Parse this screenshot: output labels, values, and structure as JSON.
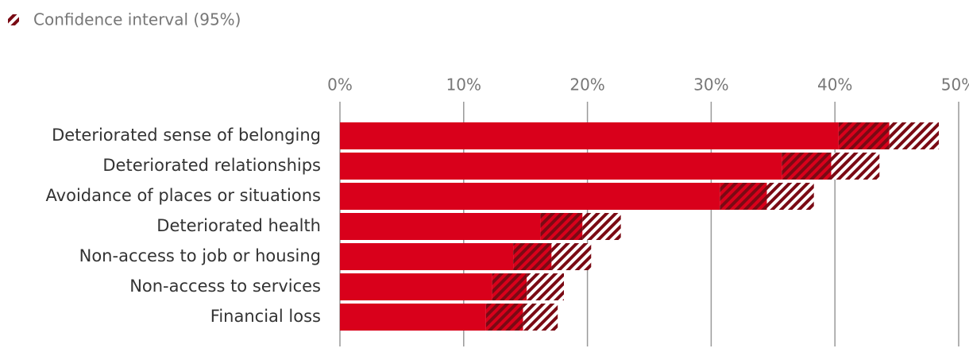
{
  "chart_data": {
    "type": "bar",
    "orientation": "horizontal",
    "legend_label": "Confidence interval (95%)",
    "categories": [
      "Deteriorated sense of belonging",
      "Deteriorated relationships",
      "Avoidance of places or situations",
      "Deteriorated health",
      "Non-access to job or housing",
      "Non-access to services",
      "Financial loss"
    ],
    "values": [
      44.4,
      39.7,
      34.5,
      19.6,
      17.1,
      15.1,
      14.8
    ],
    "ci_low": [
      40.3,
      35.7,
      30.7,
      16.2,
      14.0,
      12.3,
      11.8
    ],
    "ci_high": [
      48.4,
      43.6,
      38.3,
      22.7,
      20.3,
      18.1,
      17.6
    ],
    "color": "#d9001b",
    "ci_color": "#7a0a14",
    "xlim": [
      0,
      50
    ],
    "xticks": [
      {
        "value": 0,
        "label": "0%"
      },
      {
        "value": 10,
        "label": "10%"
      },
      {
        "value": 20,
        "label": "20%"
      },
      {
        "value": 30,
        "label": "30%"
      },
      {
        "value": 40,
        "label": "40%"
      },
      {
        "value": 50,
        "label": "50%"
      }
    ],
    "grid": true
  }
}
